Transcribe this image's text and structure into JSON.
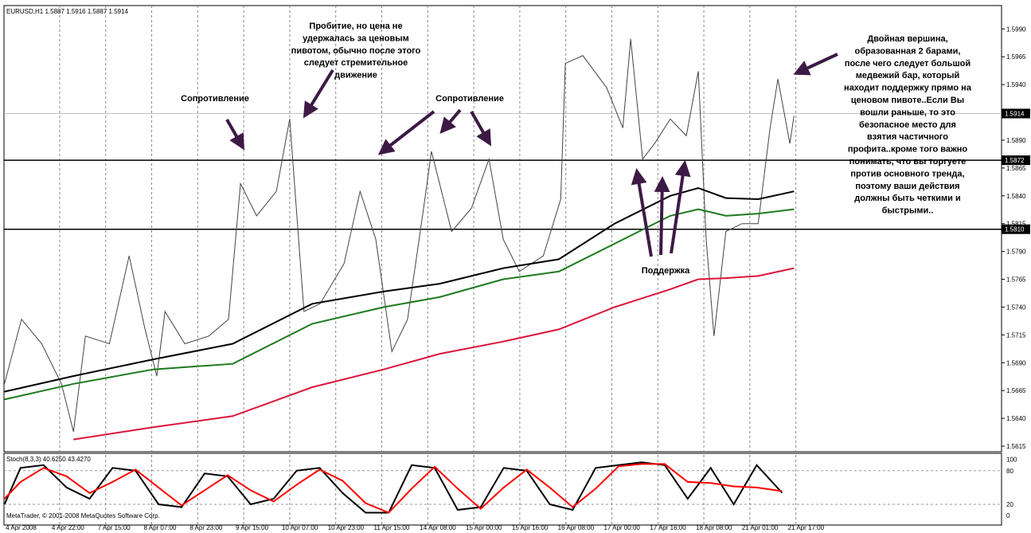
{
  "chart_data": [
    {
      "type": "line",
      "title": "EURUSD,H1  1.5887 1.5916 1.5887 1.5914",
      "categories": [
        "4 Apr 2008",
        "4 Apr 22:00",
        "7 Apr 15:00",
        "8 Apr 07:00",
        "8 Apr 23:00",
        "9 Apr 15:00",
        "10 Apr 07:00",
        "10 Apr 23:00",
        "11 Apr 15:00",
        "14 Apr 08:00",
        "15 Apr 00:00",
        "15 Apr 16:00",
        "16 Apr 08:00",
        "17 Apr 00:00",
        "17 Apr 16:00",
        "18 Apr 08:00",
        "21 Apr 01:00",
        "21 Apr 17:00"
      ],
      "xlim": [
        -0.21,
        21.47
      ],
      "ylim": [
        1.561,
        1.6011
      ],
      "yticks": [
        1.5615,
        {
          "value": 1.564,
          "label": "1.5640"
        },
        1.5665,
        {
          "value": 1.569,
          "label": "1.5690"
        },
        1.5715,
        {
          "value": 1.574,
          "label": "1.5740"
        },
        1.5765,
        {
          "value": 1.579,
          "label": "1.5790"
        },
        1.5815,
        {
          "value": 1.584,
          "label": "1.5840"
        },
        1.5865,
        {
          "value": 1.589,
          "label": "1.5890"
        },
        1.5915,
        {
          "value": 1.594,
          "label": "1.5940"
        },
        1.5965,
        {
          "value": 1.599,
          "label": "1.5990"
        }
      ],
      "series": [
        {
          "color": "#444444",
          "x": [
            -0.2,
            0.17,
            0.61,
            1.04,
            1.3,
            1.56,
            2.08,
            2.51,
            2.85,
            3.11,
            3.29,
            3.72,
            4.24,
            4.67,
            4.93,
            5.28,
            5.71,
            6,
            6.31,
            6.66,
            7.18,
            7.53,
            7.87,
            8.22,
            8.56,
            8.91,
            9.08,
            9.52,
            9.95,
            10.33,
            10.64,
            10.99,
            11.51,
            11.89,
            11.99,
            12.37,
            12.89,
            13.24,
            13.41,
            13.67,
            13.93,
            14.27,
            14.62,
            14.88,
            15.05,
            15.22,
            15.48,
            15.83,
            16.18,
            16.44,
            16.61,
            16.87,
            16.96
          ],
          "values": [
            1.5671,
            1.5729,
            1.5707,
            1.5671,
            1.5628,
            1.5714,
            1.5707,
            1.5786,
            1.5721,
            1.5678,
            1.5736,
            1.5707,
            1.5714,
            1.5729,
            1.5851,
            1.5822,
            1.5844,
            1.5909,
            1.5736,
            1.5743,
            1.5779,
            1.5844,
            1.5801,
            1.57,
            1.5729,
            1.5829,
            1.588,
            1.5808,
            1.5829,
            1.5873,
            1.5801,
            1.5772,
            1.5786,
            1.5837,
            1.5959,
            1.5966,
            1.5937,
            1.5901,
            1.5981,
            1.5873,
            1.5887,
            1.5909,
            1.5894,
            1.5952,
            1.5801,
            1.5714,
            1.5808,
            1.5815,
            1.5815,
            1.5901,
            1.5945,
            1.5887,
            1.5912
          ]
        },
        {
          "color": "#000000",
          "x": [
            -0.2,
            1.3,
            3.03,
            4.76,
            6.49,
            8.04,
            9.26,
            10.64,
            11.85,
            13.06,
            14.27,
            14.88,
            15.48,
            16.18,
            16.96
          ],
          "values": [
            1.5664,
            1.5678,
            1.5693,
            1.5707,
            1.5743,
            1.5754,
            1.5761,
            1.5775,
            1.5783,
            1.5815,
            1.584,
            1.5847,
            1.5838,
            1.5837,
            1.5844
          ]
        },
        {
          "color": "#1e7a1e",
          "x": [
            -0.2,
            1.3,
            3.03,
            4.76,
            6.49,
            8.04,
            9.26,
            10.64,
            11.85,
            13.06,
            14.27,
            14.88,
            15.48,
            16.18,
            16.96
          ],
          "values": [
            1.5657,
            1.5671,
            1.5684,
            1.5689,
            1.5725,
            1.574,
            1.5749,
            1.5765,
            1.5772,
            1.5797,
            1.5822,
            1.5828,
            1.5822,
            1.5824,
            1.5828
          ]
        },
        {
          "color": "#dc143c",
          "x": [
            1.3,
            3.03,
            4.76,
            6.49,
            8.04,
            9.26,
            10.64,
            11.85,
            13.06,
            14.27,
            14.88,
            15.48,
            16.18,
            16.96
          ],
          "values": [
            1.5621,
            1.5632,
            1.5642,
            1.5668,
            1.5684,
            1.5698,
            1.5709,
            1.572,
            1.574,
            1.5756,
            1.5765,
            1.5766,
            1.5768,
            1.5775
          ]
        }
      ],
      "levels": [
        1.5872,
        {
          "value": 1.581,
          "label": "1.5810"
        }
      ],
      "current_price": 1.5914,
      "annotations": {
        "resistance_left": "Сопротивление",
        "breakout": [
          "Пробитие, но цена не",
          "удержалась за ценовым",
          "пивотом, обычно после этого",
          "следует стремительное",
          "движение"
        ],
        "resistance_mid": "Сопротивление",
        "support": "Поддержка",
        "double_top": [
          "Двойная вершина,",
          "образованная 2 барами,",
          "после чего следует большой",
          "медвежий бар, который",
          "находит поддержку прямо на",
          "ценовом пивоте..Если Вы",
          "вошли раньше, то это",
          "безопасное место для",
          "взятия частичного",
          "профита..кроме того важно",
          "понимать, что вы торгуете",
          "против основного тренда,",
          "поэтому ваши действия",
          "должны быть четкими и",
          "быстрыми.."
        ]
      }
    },
    {
      "type": "line",
      "title": "Stoch(8,3,3) 40.6250 43.4270",
      "ylim": [
        -17,
        111
      ],
      "yticks": [
        0,
        20,
        80,
        100
      ],
      "series": [
        {
          "color": "#000000",
          "x": [
            -0.2,
            0.15,
            0.65,
            1.15,
            1.65,
            2.15,
            2.65,
            3.15,
            3.65,
            4.15,
            4.65,
            5.15,
            5.65,
            6.15,
            6.65,
            7.15,
            7.65,
            8.15,
            8.65,
            9.15,
            9.65,
            10.15,
            10.65,
            11.15,
            11.65,
            12.15,
            12.65,
            13.15,
            13.65,
            14.15,
            14.65,
            15.15,
            15.65,
            16.15,
            16.7
          ],
          "values": [
            20,
            85,
            90,
            50,
            30,
            85,
            80,
            20,
            15,
            75,
            70,
            20,
            30,
            80,
            85,
            40,
            5,
            5,
            90,
            85,
            10,
            15,
            85,
            80,
            20,
            10,
            85,
            90,
            95,
            90,
            30,
            85,
            20,
            90,
            40.625
          ]
        },
        {
          "color": "#ff0000",
          "x": [
            -0.2,
            0.15,
            0.65,
            1.15,
            1.65,
            2.15,
            2.65,
            3.15,
            3.65,
            4.15,
            4.65,
            5.15,
            5.65,
            6.15,
            6.65,
            7.15,
            7.65,
            8.15,
            8.65,
            9.15,
            9.65,
            10.15,
            10.65,
            11.15,
            11.65,
            12.15,
            12.65,
            13.15,
            13.65,
            14.15,
            14.65,
            15.15,
            15.65,
            16.15,
            16.7
          ],
          "values": [
            30,
            60,
            85,
            70,
            40,
            60,
            82,
            50,
            18,
            45,
            72,
            45,
            25,
            55,
            82,
            62,
            22,
            5,
            48,
            87,
            48,
            12,
            50,
            82,
            50,
            15,
            48,
            88,
            92,
            92,
            60,
            58,
            52,
            50,
            43.427
          ]
        }
      ]
    }
  ],
  "footer": "MetaTrader, © 2001-2008 MetaQuotes Software Corp."
}
